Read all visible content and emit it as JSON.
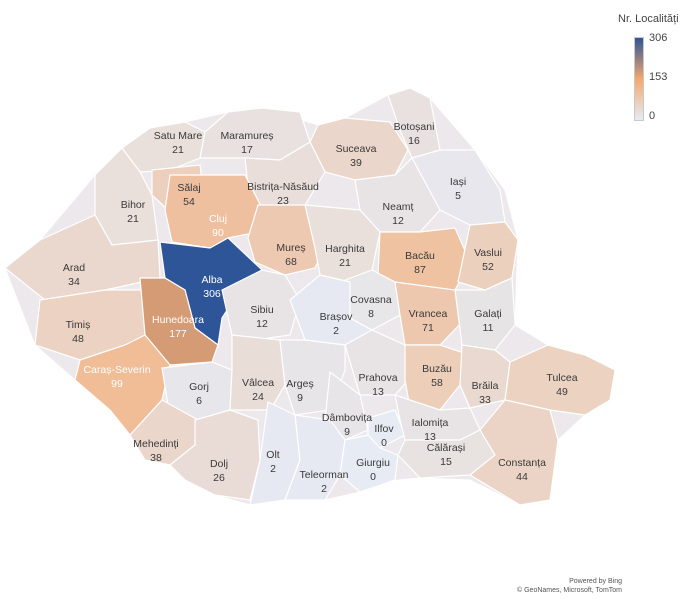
{
  "legend": {
    "title": "Nr. Localități",
    "max_label": "306",
    "mid_label": "153",
    "min_label": "0",
    "color_low": "#e6ebf4",
    "color_mid": "#f4a86e",
    "color_high": "#2e5597"
  },
  "credits": {
    "line1": "Powered by Bing",
    "line2": "© GeoNames, Microsoft, TomTom"
  },
  "chart_data": {
    "type": "choropleth",
    "value_label": "Nr. Localități",
    "scale": [
      0,
      153,
      306
    ],
    "regions": [
      {
        "name": "Satu Mare",
        "value": 21
      },
      {
        "name": "Maramureș",
        "value": 17
      },
      {
        "name": "Botoșani",
        "value": 16
      },
      {
        "name": "Suceava",
        "value": 39
      },
      {
        "name": "Sălaj",
        "value": 54
      },
      {
        "name": "Bistrița-Năsăud",
        "value": 23
      },
      {
        "name": "Iași",
        "value": 5
      },
      {
        "name": "Bihor",
        "value": 21
      },
      {
        "name": "Cluj",
        "value": 90
      },
      {
        "name": "Neamț",
        "value": 12
      },
      {
        "name": "Mureș",
        "value": 68
      },
      {
        "name": "Harghita",
        "value": 21
      },
      {
        "name": "Bacău",
        "value": 87
      },
      {
        "name": "Vaslui",
        "value": 52
      },
      {
        "name": "Arad",
        "value": 34
      },
      {
        "name": "Alba",
        "value": 306
      },
      {
        "name": "Timiș",
        "value": 48
      },
      {
        "name": "Hunedoara",
        "value": 177
      },
      {
        "name": "Sibiu",
        "value": 12
      },
      {
        "name": "Covasna",
        "value": 8
      },
      {
        "name": "Brașov",
        "value": 2
      },
      {
        "name": "Vrancea",
        "value": 71
      },
      {
        "name": "Galați",
        "value": 11
      },
      {
        "name": "Caraș-Severin",
        "value": 99
      },
      {
        "name": "Gorj",
        "value": 6
      },
      {
        "name": "Vâlcea",
        "value": 24
      },
      {
        "name": "Argeș",
        "value": 9
      },
      {
        "name": "Prahova",
        "value": 13
      },
      {
        "name": "Buzău",
        "value": 58
      },
      {
        "name": "Brăila",
        "value": 33
      },
      {
        "name": "Tulcea",
        "value": 49
      },
      {
        "name": "Dâmbovița",
        "value": 9
      },
      {
        "name": "Ilfov",
        "value": 0
      },
      {
        "name": "Ialomița",
        "value": 13
      },
      {
        "name": "Mehedinți",
        "value": 38
      },
      {
        "name": "Olt",
        "value": 2
      },
      {
        "name": "Dolj",
        "value": 26
      },
      {
        "name": "Teleorman",
        "value": 2
      },
      {
        "name": "Giurgiu",
        "value": 0
      },
      {
        "name": "Călărași",
        "value": 15
      },
      {
        "name": "Constanța",
        "value": 44
      }
    ]
  }
}
